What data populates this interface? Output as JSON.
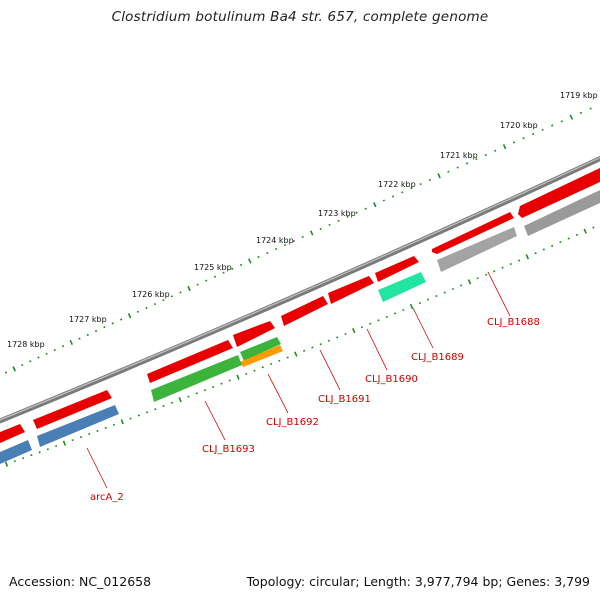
{
  "header": {
    "title": "Clostridium botulinum Ba4 str. 657, complete genome"
  },
  "footer": {
    "accession": "Accession: NC_012658",
    "summary": "Topology: circular; Length: 3,977,794 bp; Genes: 3,799"
  },
  "colors": {
    "backbone": "#7a7a7a",
    "tick": "#1e8c1e",
    "cds_forward": "#e80000",
    "cds_reverse_a": "#4a7fb5",
    "cds_reverse_b": "#3cb43c",
    "cds_reverse_c": "#9a9a9a",
    "cds_reverse_d": "#22e6a0",
    "cds_reverse_e": "#ff9a00",
    "label": "#d10000"
  },
  "ruler": {
    "labels": [
      "1719 kbp",
      "1720 kbp",
      "1721 kbp",
      "1722 kbp",
      "1723 kbp",
      "1724 kbp",
      "1725 kbp",
      "1726 kbp",
      "1727 kbp",
      "1728 kbp"
    ]
  },
  "genes": {
    "labels": [
      "CLJ_B1688",
      "CLJ_B1689",
      "CLJ_B1690",
      "CLJ_B1691",
      "CLJ_B1692",
      "CLJ_B1693",
      "arcA_2"
    ]
  }
}
